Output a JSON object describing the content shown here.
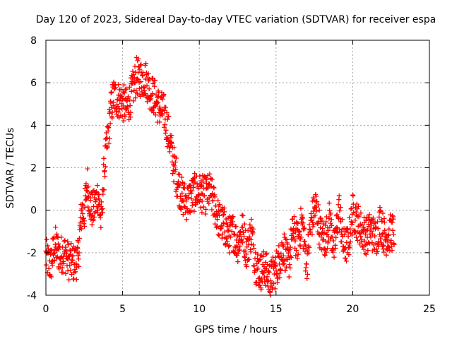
{
  "chart_data": {
    "type": "scatter",
    "title": "Day 120 of 2023, Sidereal Day-to-day VTEC variation (SDTVAR) for receiver espa",
    "xlabel": "GPS time / hours",
    "ylabel": "SDTVAR / TECUs",
    "xlim": [
      0,
      25
    ],
    "ylim": [
      -4,
      8
    ],
    "xticks": [
      0,
      5,
      10,
      15,
      20,
      25
    ],
    "yticks": [
      -4,
      -2,
      0,
      2,
      4,
      6,
      8
    ],
    "grid": true,
    "marker": "+",
    "marker_color": "#ff0000",
    "grid_color": "#a0a0a0",
    "axis_color": "#000000",
    "series": [
      {
        "name": "SDTVAR",
        "trend_x": [
          0.0,
          0.3,
          0.6,
          0.9,
          1.2,
          1.5,
          1.8,
          2.1,
          2.2,
          2.35,
          2.5,
          2.7,
          2.9,
          3.1,
          3.4,
          3.6,
          3.8,
          4.0,
          4.2,
          4.4,
          4.7,
          5.0,
          5.3,
          5.6,
          5.9,
          6.2,
          6.5,
          6.8,
          7.1,
          7.4,
          7.7,
          8.0,
          8.3,
          8.6,
          8.9,
          9.2,
          9.5,
          9.8,
          10.1,
          10.4,
          10.7,
          11.0,
          11.3,
          11.6,
          11.9,
          12.2,
          12.5,
          12.8,
          13.1,
          13.4,
          13.7,
          14.0,
          14.3,
          14.6,
          14.9,
          15.2,
          15.5,
          15.8,
          16.1,
          16.4,
          16.7,
          17.0,
          17.3,
          17.6,
          17.9,
          18.2,
          18.5,
          18.8,
          19.1,
          19.4,
          19.7,
          20.0,
          20.3,
          20.6,
          20.9,
          21.2,
          21.5,
          21.8,
          22.1,
          22.4,
          22.7
        ],
        "trend_y": [
          -2.2,
          -2.6,
          -1.6,
          -2.1,
          -2.0,
          -2.4,
          -2.5,
          -2.3,
          -1.2,
          0.0,
          -0.2,
          1.3,
          0.1,
          0.0,
          0.8,
          -0.6,
          1.9,
          3.2,
          4.5,
          5.4,
          5.2,
          5.1,
          4.8,
          5.5,
          6.3,
          6.2,
          6.2,
          5.6,
          5.3,
          4.8,
          4.6,
          3.6,
          2.3,
          1.3,
          0.6,
          0.4,
          0.7,
          0.9,
          0.8,
          0.7,
          0.9,
          0.2,
          -0.5,
          -0.7,
          -1.2,
          -1.0,
          -1.6,
          -0.9,
          -1.9,
          -1.0,
          -2.6,
          -2.9,
          -2.7,
          -3.3,
          -2.9,
          -2.4,
          -1.7,
          -2.6,
          -1.0,
          -1.5,
          -0.5,
          -2.5,
          -0.5,
          0.2,
          -1.1,
          -1.4,
          -0.4,
          -1.9,
          0.1,
          -1.7,
          -1.6,
          -0.1,
          -0.5,
          -1.0,
          -1.2,
          -0.9,
          -1.4,
          -0.5,
          -1.3,
          -1.1,
          -1.0
        ],
        "spread_tecu": 0.9
      }
    ]
  }
}
